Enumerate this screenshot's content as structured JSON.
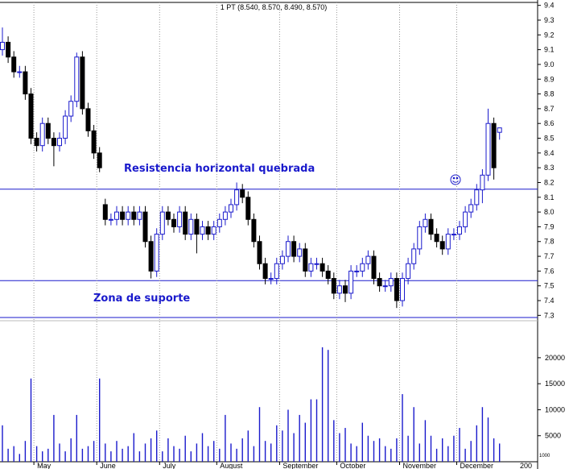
{
  "chart_data": {
    "type": "candlestick",
    "title": "1 PT (8.540, 8.570, 8.490, 8.570)",
    "categories": [
      null,
      null,
      null,
      null,
      null,
      null,
      "May",
      null,
      null,
      null,
      null,
      null,
      null,
      null,
      null,
      null,
      null,
      "June",
      null,
      null,
      null,
      null,
      null,
      null,
      null,
      null,
      null,
      null,
      "July",
      null,
      null,
      null,
      null,
      null,
      null,
      null,
      null,
      null,
      "August",
      null,
      null,
      null,
      null,
      null,
      null,
      null,
      null,
      null,
      null,
      "September",
      null,
      null,
      null,
      null,
      null,
      null,
      null,
      null,
      null,
      "October",
      null,
      null,
      null,
      null,
      null,
      null,
      null,
      null,
      null,
      null,
      "November",
      null,
      null,
      null,
      null,
      null,
      null,
      null,
      null,
      null,
      "December",
      null,
      null,
      null,
      null,
      null,
      null,
      null
    ],
    "open": [
      9.1,
      9.15,
      9.05,
      8.95,
      8.95,
      8.8,
      8.5,
      8.45,
      8.6,
      8.5,
      8.45,
      8.5,
      8.65,
      8.75,
      9.05,
      8.7,
      8.55,
      8.4,
      8.05,
      7.95,
      7.95,
      8.0,
      7.95,
      8.0,
      7.95,
      8.0,
      7.8,
      7.6,
      7.85,
      8.0,
      7.95,
      7.9,
      8.0,
      7.85,
      7.95,
      7.85,
      7.9,
      7.85,
      7.9,
      7.95,
      8.0,
      8.05,
      8.15,
      8.1,
      7.95,
      7.8,
      7.65,
      7.55,
      7.55,
      7.65,
      7.7,
      7.8,
      7.7,
      7.75,
      7.6,
      7.65,
      7.65,
      7.6,
      7.55,
      7.45,
      7.5,
      7.45,
      7.6,
      7.6,
      7.65,
      7.7,
      7.55,
      7.5,
      7.5,
      7.55,
      7.4,
      7.55,
      7.65,
      7.75,
      7.9,
      7.95,
      7.85,
      7.8,
      7.75,
      7.85,
      7.85,
      7.9,
      8.0,
      8.05,
      8.15,
      8.25,
      8.6,
      8.54
    ],
    "high": [
      9.25,
      9.19,
      9.09,
      8.99,
      8.99,
      8.84,
      8.54,
      8.64,
      8.64,
      8.54,
      8.54,
      8.69,
      8.79,
      9.08,
      9.09,
      8.74,
      8.59,
      8.44,
      8.09,
      7.99,
      8.04,
      8.04,
      8.04,
      8.04,
      8.04,
      8.04,
      7.84,
      7.89,
      8.04,
      8.04,
      7.99,
      8.04,
      8.04,
      7.99,
      7.99,
      7.94,
      7.94,
      7.94,
      7.99,
      8.04,
      8.09,
      8.2,
      8.19,
      8.14,
      7.99,
      7.84,
      7.69,
      7.59,
      7.69,
      7.74,
      7.84,
      7.84,
      7.79,
      7.79,
      7.69,
      7.69,
      7.69,
      7.64,
      7.59,
      7.54,
      7.54,
      7.64,
      7.64,
      7.69,
      7.74,
      7.74,
      7.59,
      7.54,
      7.59,
      7.59,
      7.59,
      7.69,
      7.79,
      7.94,
      7.99,
      7.99,
      7.89,
      7.84,
      7.89,
      7.89,
      7.94,
      8.04,
      8.09,
      8.19,
      8.29,
      8.7,
      8.64,
      8.57
    ],
    "low": [
      9.06,
      9.01,
      8.91,
      8.91,
      8.76,
      8.46,
      8.41,
      8.41,
      8.46,
      8.31,
      8.41,
      8.46,
      8.61,
      8.71,
      8.66,
      8.51,
      8.36,
      8.27,
      7.91,
      7.91,
      7.91,
      7.91,
      7.91,
      7.91,
      7.91,
      7.76,
      7.55,
      7.56,
      7.81,
      7.91,
      7.86,
      7.86,
      7.81,
      7.81,
      7.72,
      7.81,
      7.81,
      7.81,
      7.86,
      7.91,
      7.96,
      8.01,
      8.06,
      7.91,
      7.76,
      7.61,
      7.51,
      7.51,
      7.51,
      7.61,
      7.66,
      7.66,
      7.66,
      7.56,
      7.56,
      7.61,
      7.56,
      7.51,
      7.41,
      7.41,
      7.39,
      7.41,
      7.56,
      7.56,
      7.61,
      7.51,
      7.46,
      7.46,
      7.46,
      7.35,
      7.36,
      7.51,
      7.61,
      7.71,
      7.86,
      7.81,
      7.76,
      7.71,
      7.71,
      7.81,
      7.81,
      7.86,
      7.96,
      8.01,
      8.06,
      8.21,
      8.22,
      8.49
    ],
    "close": [
      9.15,
      9.05,
      8.95,
      8.95,
      8.8,
      8.5,
      8.45,
      8.6,
      8.5,
      8.45,
      8.5,
      8.65,
      8.75,
      9.05,
      8.7,
      8.55,
      8.4,
      8.3,
      7.95,
      7.95,
      8.0,
      7.95,
      8.0,
      7.95,
      8.0,
      7.8,
      7.6,
      7.85,
      8.0,
      7.95,
      7.9,
      8.0,
      7.85,
      7.95,
      7.85,
      7.9,
      7.85,
      7.9,
      7.95,
      8.0,
      8.05,
      8.15,
      8.1,
      7.95,
      7.8,
      7.65,
      7.55,
      7.55,
      7.65,
      7.7,
      7.8,
      7.7,
      7.75,
      7.6,
      7.65,
      7.65,
      7.6,
      7.55,
      7.45,
      7.5,
      7.45,
      7.6,
      7.6,
      7.65,
      7.7,
      7.55,
      7.5,
      7.5,
      7.55,
      7.4,
      7.55,
      7.65,
      7.75,
      7.9,
      7.95,
      7.85,
      7.8,
      7.75,
      7.85,
      7.85,
      7.9,
      8.0,
      8.05,
      8.15,
      8.25,
      8.6,
      8.3,
      8.57
    ],
    "volume": [
      7000,
      2500,
      3000,
      1500,
      4000,
      16000,
      3000,
      2000,
      2500,
      9000,
      3500,
      2000,
      4500,
      9000,
      2500,
      3000,
      4000,
      16000,
      3500,
      2000,
      4000,
      2500,
      3000,
      5500,
      2000,
      3500,
      4500,
      6000,
      2000,
      4500,
      3000,
      2500,
      5000,
      2000,
      3500,
      5500,
      3000,
      4000,
      2500,
      9000,
      3500,
      2500,
      4500,
      6000,
      3000,
      10500,
      4000,
      3500,
      7000,
      6000,
      10000,
      5500,
      9000,
      7500,
      12000,
      12000,
      22000,
      21500,
      8000,
      5500,
      6500,
      3500,
      3000,
      7500,
      5000,
      4000,
      4500,
      3000,
      2500,
      4500,
      13000,
      5000,
      10500,
      3500,
      8000,
      5000,
      2500,
      4500,
      3000,
      5000,
      6500,
      2500,
      4000,
      7000,
      10500,
      8500,
      4500,
      3500
    ],
    "ylim": [
      7.28,
      9.42
    ],
    "yticks": [
      7.3,
      7.4,
      7.5,
      7.6,
      7.7,
      7.8,
      7.9,
      {
        "value": 8,
        "label": "8.0"
      },
      8.1,
      8.2,
      8.3,
      8.4,
      8.5,
      8.6,
      8.7,
      8.8,
      8.9,
      {
        "value": 9,
        "label": "9.0"
      },
      9.1,
      9.2,
      9.3,
      9.4
    ],
    "volume_ylim": [
      0,
      26800
    ],
    "volume_yticks": [
      5000,
      10000,
      15000,
      20000
    ],
    "volume_unit_label": "1000",
    "x_edge_label": "200",
    "hlines": [
      8.155,
      7.535
    ],
    "annotations": [
      "Resistencia horizontal quebrada",
      "Zona de suporte"
    ],
    "up_color": "#1a1acc",
    "down_color": "#000000",
    "volume_color": "#1a1acc",
    "line_color": "#1a1acc"
  }
}
